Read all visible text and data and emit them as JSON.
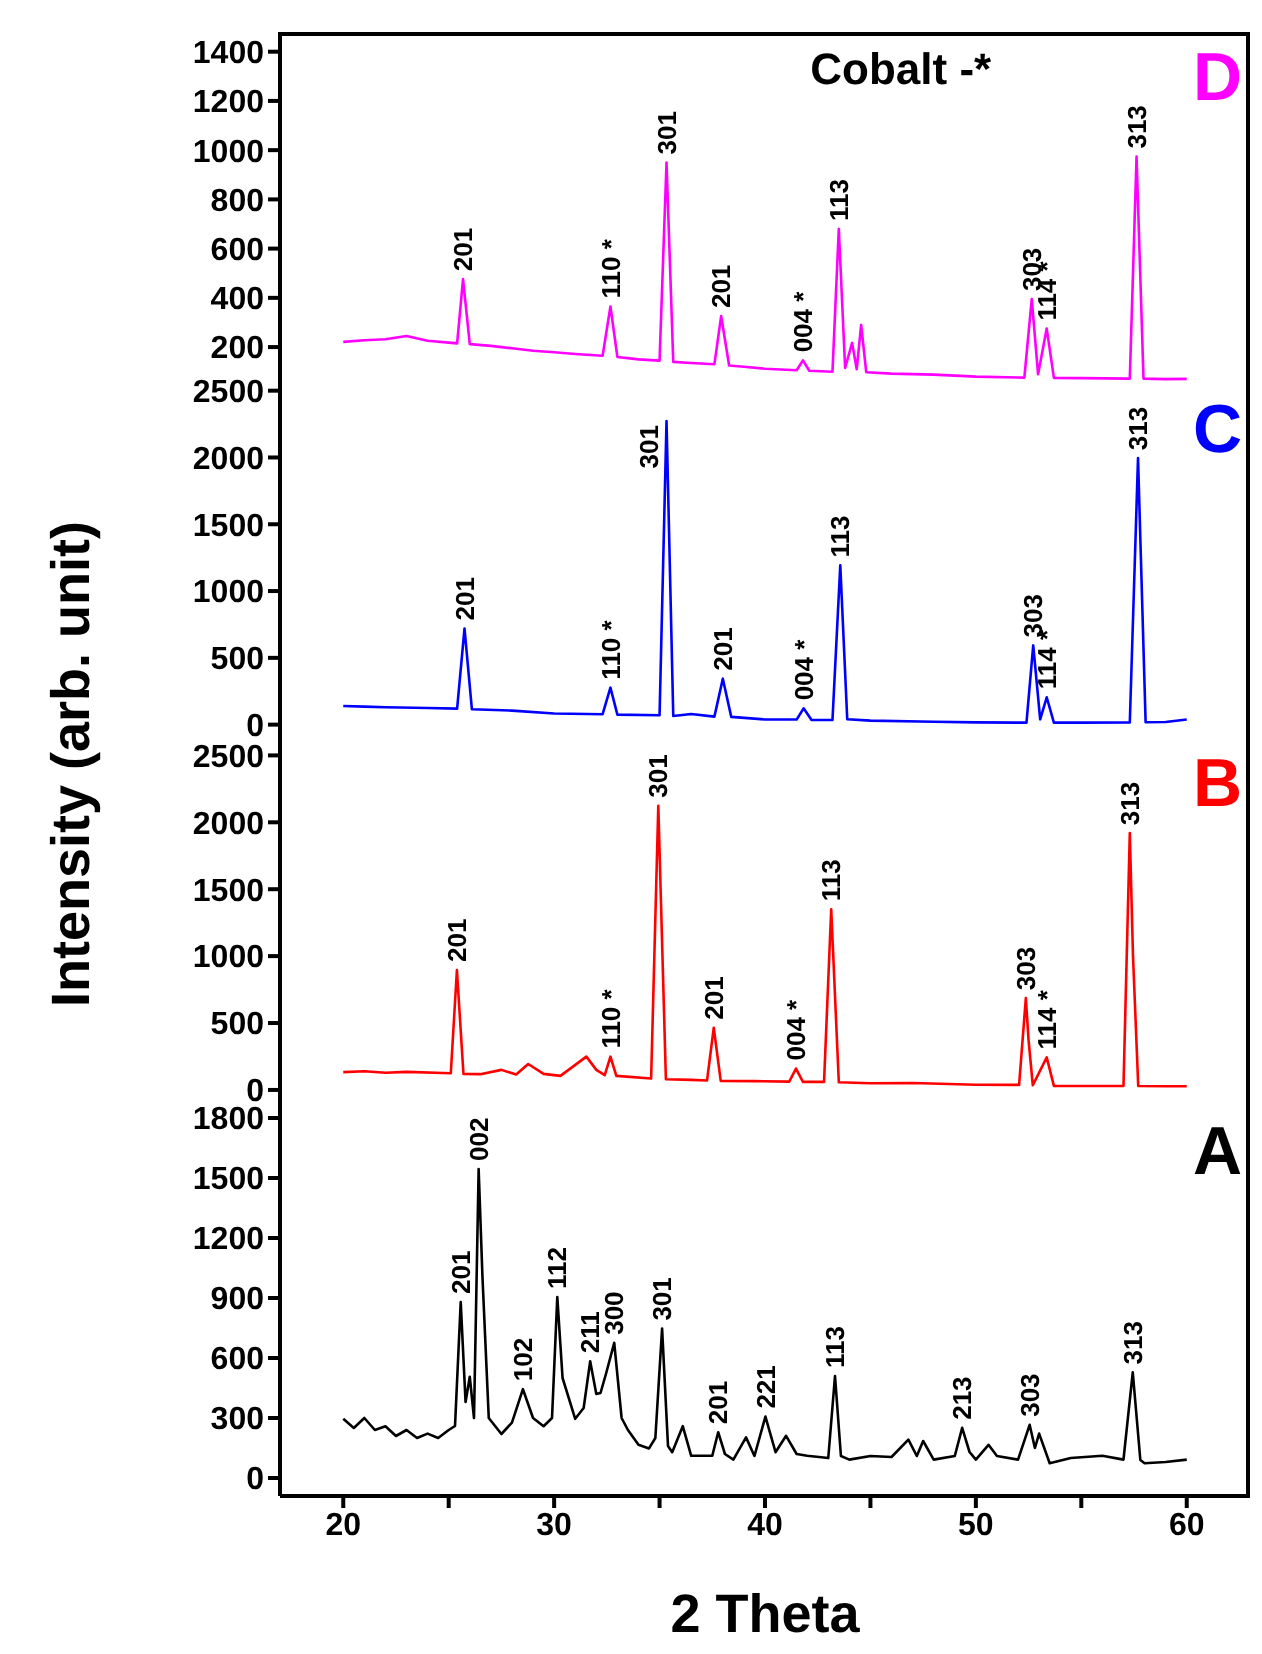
{
  "chart_data": [
    {
      "type": "line",
      "title": "D",
      "ylabel": "Intensity (arb. unit)",
      "xlim": [
        17,
        63
      ],
      "xticks": [
        20,
        30,
        40,
        50,
        60
      ],
      "ylim": [
        50,
        1480
      ],
      "yticks": [
        200,
        400,
        600,
        800,
        1000,
        1200,
        1400
      ],
      "tick_labels": "y",
      "series": [
        {
          "color": "#ff00ff",
          "x": [
            20,
            21,
            22,
            23,
            24,
            25,
            25.4,
            25.68,
            26.0,
            27,
            28,
            29,
            30,
            31,
            32.3,
            32.67,
            33.0,
            34,
            35.0,
            35.33,
            35.65,
            36.5,
            37.6,
            37.92,
            38.3,
            39,
            40,
            41,
            41.5,
            41.8,
            42.1,
            43.2,
            43.5,
            43.8,
            44.13,
            44.35,
            44.56,
            44.8,
            46,
            48,
            50,
            52.3,
            52.65,
            52.95,
            53.36,
            53.7,
            55,
            57.3,
            57.62,
            57.95,
            59,
            60
          ],
          "values": [
            221,
            228,
            232,
            245,
            226,
            218,
            215,
            476,
            212,
            205,
            195,
            185,
            179,
            172,
            165,
            365,
            160,
            150,
            145,
            950,
            140,
            135,
            130,
            326,
            125,
            120,
            112,
            108,
            106,
            146,
            104,
            100,
            680,
            115,
            217,
            110,
            290,
            98,
            92,
            88,
            80,
            76,
            395,
            90,
            275,
            75,
            74,
            72,
            974,
            72,
            70,
            71
          ]
        }
      ],
      "annotations": [
        "Cobalt -*",
        {
          "text": "201",
          "x": 25.68,
          "y": 476
        },
        {
          "text": "110 *",
          "x": 32.67,
          "y": 365
        },
        {
          "text": "301",
          "x": 35.33,
          "y": 950
        },
        {
          "text": "201",
          "x": 37.92,
          "y": 326
        },
        {
          "text": "004 *",
          "x": 41.8,
          "y": 146
        },
        {
          "text": "113",
          "x": 43.5,
          "y": 680
        },
        {
          "text": "303",
          "x": 52.65,
          "y": 395
        },
        {
          "text": "114 *",
          "x": 53.36,
          "y": 275
        },
        {
          "text": "313",
          "x": 57.62,
          "y": 974
        }
      ]
    },
    {
      "type": "line",
      "title": "C",
      "xlim": [
        17,
        63
      ],
      "xticks": [
        20,
        30,
        40,
        50,
        60
      ],
      "ylim": [
        -100,
        2550
      ],
      "yticks": [
        0,
        500,
        1000,
        1500,
        2000,
        2500
      ],
      "tick_labels": "y",
      "series": [
        {
          "color": "#0000ff",
          "x": [
            20,
            21,
            22,
            24,
            25.4,
            25.75,
            26.1,
            28,
            30,
            32.3,
            32.67,
            33.0,
            35.0,
            35.33,
            35.65,
            36.5,
            37.6,
            38.0,
            38.4,
            40,
            41.5,
            41.83,
            42.2,
            43.2,
            43.57,
            43.9,
            45,
            48,
            50,
            52.4,
            52.72,
            53.05,
            53.36,
            53.7,
            55,
            57.3,
            57.69,
            58.05,
            59,
            60
          ],
          "values": [
            139,
            135,
            130,
            125,
            120,
            720,
            115,
            105,
            83,
            78,
            277,
            75,
            70,
            2273,
            65,
            80,
            60,
            344,
            58,
            39,
            38,
            122,
            36,
            35,
            1192,
            40,
            30,
            22,
            17,
            15,
            593,
            40,
            205,
            15,
            15,
            16,
            1995,
            18,
            20,
            39
          ]
        }
      ],
      "annotations": [
        {
          "text": "201",
          "x": 25.75,
          "y": 720
        },
        {
          "text": "110 *",
          "x": 32.67,
          "y": 277
        },
        {
          "text": "301",
          "x": 35.33,
          "y": 2273
        },
        {
          "text": "201",
          "x": 38.0,
          "y": 344
        },
        {
          "text": "004 *",
          "x": 41.83,
          "y": 122
        },
        {
          "text": "113",
          "x": 43.57,
          "y": 1192
        },
        {
          "text": "303",
          "x": 52.72,
          "y": 593
        },
        {
          "text": "114 *",
          "x": 53.36,
          "y": 205
        },
        {
          "text": "313",
          "x": 57.69,
          "y": 1995
        }
      ]
    },
    {
      "type": "line",
      "title": "B",
      "xlim": [
        17,
        63
      ],
      "xticks": [
        20,
        30,
        40,
        50,
        60
      ],
      "ylim": [
        -120,
        2630
      ],
      "yticks": [
        0,
        500,
        1000,
        1500,
        2000,
        2500
      ],
      "tick_labels": "y",
      "series": [
        {
          "color": "#ff0000",
          "x": [
            20,
            21,
            22,
            23,
            25.1,
            25.39,
            25.7,
            26.5,
            27.5,
            28.2,
            28.77,
            29.5,
            30.3,
            31.53,
            32.0,
            32.4,
            32.67,
            32.95,
            34.6,
            34.94,
            35.3,
            36.5,
            37.25,
            37.57,
            37.9,
            39.5,
            41.15,
            41.47,
            41.8,
            42.8,
            43.14,
            43.5,
            45,
            47,
            50,
            52.05,
            52.37,
            52.5,
            52.7,
            53.36,
            53.7,
            55,
            57.0,
            57.3,
            57.45,
            57.7,
            59,
            60
          ],
          "values": [
            133,
            140,
            128,
            135,
            125,
            896,
            120,
            118,
            150,
            115,
            194,
            120,
            105,
            249,
            150,
            110,
            249,
            105,
            85,
            2124,
            80,
            75,
            70,
            465,
            68,
            66,
            62,
            160,
            60,
            60,
            1350,
            58,
            50,
            52,
            39,
            38,
            686,
            370,
            35,
            243,
            30,
            30,
            30,
            1919,
            1007,
            30,
            28,
            28
          ]
        }
      ],
      "annotations": [
        {
          "text": "201",
          "x": 25.39,
          "y": 896
        },
        {
          "text": "110 *",
          "x": 32.67,
          "y": 249
        },
        {
          "text": "301",
          "x": 34.94,
          "y": 2124
        },
        {
          "text": "201",
          "x": 37.57,
          "y": 465
        },
        {
          "text": "004 *",
          "x": 41.47,
          "y": 160
        },
        {
          "text": "113",
          "x": 43.14,
          "y": 1350
        },
        {
          "text": "303",
          "x": 52.37,
          "y": 686
        },
        {
          "text": "114 *",
          "x": 53.36,
          "y": 243
        },
        {
          "text": "313",
          "x": 57.3,
          "y": 1919
        }
      ]
    },
    {
      "type": "line",
      "title": "A",
      "xlabel": "2 Theta",
      "xlim": [
        17,
        63
      ],
      "xticks": [
        20,
        {
          "value": 25,
          "label": null
        },
        30,
        {
          "value": 35,
          "label": null
        },
        40,
        {
          "value": 45,
          "label": null
        },
        50,
        {
          "value": 55,
          "label": null
        },
        60
      ],
      "ylim": [
        -90,
        1860
      ],
      "yticks": [
        0,
        300,
        600,
        900,
        1200,
        1500,
        1800
      ],
      "series": [
        {
          "color": "#000000",
          "x": [
            20,
            20.5,
            21,
            21.5,
            22,
            22.5,
            23,
            23.5,
            24,
            24.5,
            25,
            25.3,
            25.57,
            25.8,
            26.0,
            26.2,
            26.42,
            26.6,
            26.9,
            27.5,
            28,
            28.52,
            29,
            29.5,
            29.9,
            30.15,
            30.4,
            31,
            31.4,
            31.71,
            32.0,
            32.2,
            32.47,
            32.85,
            33.2,
            33.5,
            34,
            34.5,
            34.8,
            35.12,
            35.4,
            35.6,
            36.1,
            36.5,
            37.5,
            37.78,
            38.1,
            38.5,
            39.1,
            39.5,
            40.02,
            40.5,
            41,
            41.5,
            42,
            43,
            43.32,
            43.6,
            44,
            45,
            46,
            46.8,
            47.2,
            47.5,
            48,
            49,
            49.35,
            49.7,
            50,
            50.6,
            51,
            52,
            52.55,
            52.8,
            53,
            53.5,
            54.5,
            56,
            57,
            57.44,
            57.8,
            58,
            59,
            60
          ],
          "values": [
            296,
            250,
            300,
            240,
            259,
            210,
            240,
            200,
            222,
            200,
            240,
            260,
            880,
            380,
            506,
            300,
            1545,
            1009,
            300,
            220,
            277,
            444,
            300,
            259,
            300,
            905,
            500,
            296,
            350,
            584,
            420,
            425,
            525,
            676,
            300,
            240,
            166,
            148,
            200,
            747,
            160,
            129,
            259,
            111,
            111,
            229,
            120,
            92,
            203,
            110,
            307,
            129,
            211,
            120,
            111,
            100,
            510,
            110,
            92,
            110,
            105,
            192,
            110,
            185,
            92,
            110,
            251,
            130,
            92,
            166,
            110,
            92,
            266,
            150,
            222,
            74,
            100,
            111,
            92,
            528,
            90,
            74,
            80,
            92
          ]
        }
      ],
      "annotations": [
        {
          "text": "201",
          "x": 25.57,
          "y": 880
        },
        {
          "text": "002",
          "x": 26.42,
          "y": 1545
        },
        {
          "text": "102",
          "x": 28.52,
          "y": 444
        },
        {
          "text": "112",
          "x": 30.15,
          "y": 905
        },
        {
          "text": "211",
          "x": 31.71,
          "y": 584
        },
        {
          "text": "300",
          "x": 32.85,
          "y": 676
        },
        {
          "text": "301",
          "x": 35.12,
          "y": 747
        },
        {
          "text": "201",
          "x": 37.78,
          "y": 229
        },
        {
          "text": "221",
          "x": 40.02,
          "y": 307
        },
        {
          "text": "113",
          "x": 43.32,
          "y": 510
        },
        {
          "text": "213",
          "x": 49.35,
          "y": 251
        },
        {
          "text": "303",
          "x": 52.55,
          "y": 266
        },
        {
          "text": "313",
          "x": 57.44,
          "y": 528
        }
      ]
    }
  ]
}
